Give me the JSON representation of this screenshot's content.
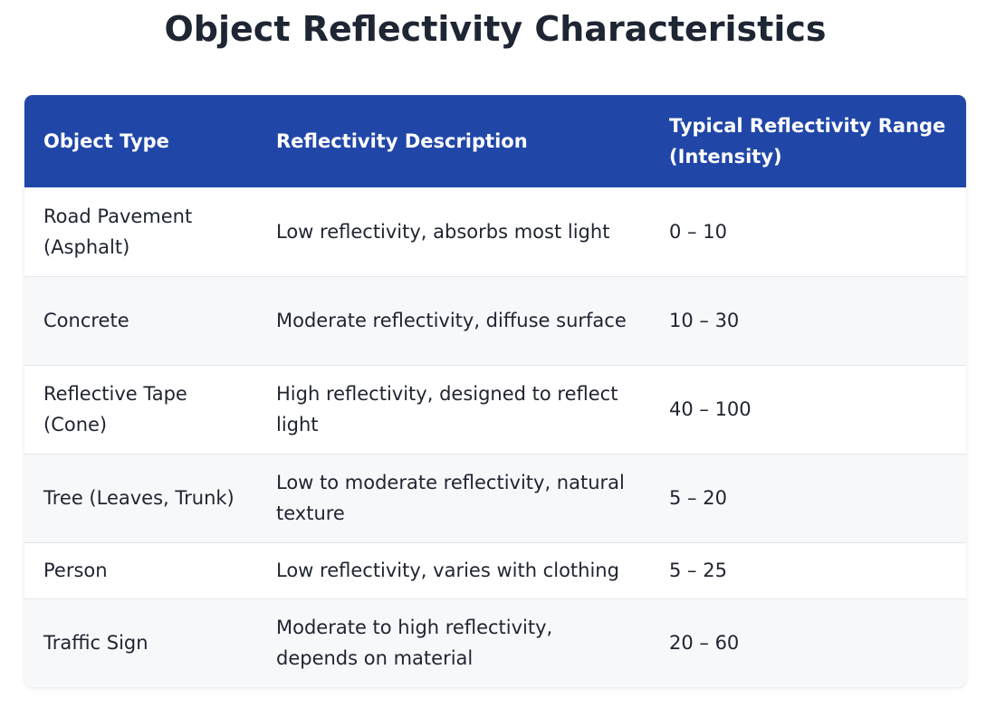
{
  "title": "Object Reflectivity Characteristics",
  "table": {
    "headers": [
      "Object Type",
      "Reflectivity Description",
      "Typical Reflectivity Range (Intensity)"
    ],
    "rows": [
      {
        "object": "Road Pavement (Asphalt)",
        "description": "Low reflectivity, absorbs most light",
        "range": "0 – 10"
      },
      {
        "object": "Concrete",
        "description": "Moderate reflectivity, diffuse surface",
        "range": "10 – 30"
      },
      {
        "object": "Reflective Tape (Cone)",
        "description": "High reflectivity, designed to reflect light",
        "range": "40 – 100"
      },
      {
        "object": "Tree (Leaves, Trunk)",
        "description": "Low to moderate reflectivity, natural texture",
        "range": "5 – 20"
      },
      {
        "object": "Person",
        "description": "Low reflectivity, varies with clothing",
        "range": "5 – 25"
      },
      {
        "object": "Traffic Sign",
        "description": "Moderate to high reflectivity, depends on material",
        "range": "20 – 60"
      }
    ]
  },
  "colors": {
    "header_bg": "#2046a8",
    "header_text": "#ffffff",
    "title_text": "#1e2533",
    "row_alt_bg": "#f7f8fa"
  }
}
